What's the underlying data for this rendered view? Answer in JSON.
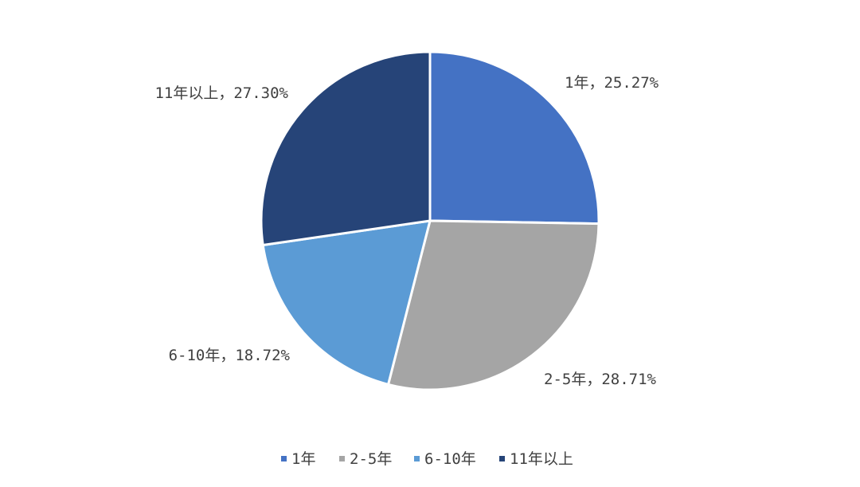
{
  "chart_data": {
    "type": "pie",
    "title": "",
    "categories": [
      "1年",
      "2-5年",
      "6-10年",
      "11年以上"
    ],
    "values": [
      25.27,
      28.71,
      18.72,
      27.3
    ],
    "colors": [
      "#4472C4",
      "#A5A5A5",
      "#5B9BD5",
      "#264478"
    ],
    "data_labels": [
      "1年，25.27%",
      "2-5年，28.71%",
      "6-10年，18.72%",
      "11年以上，27.30%"
    ],
    "start_angle_deg": 0,
    "direction": "clockwise",
    "legend": {
      "position": "bottom",
      "entries": [
        "1年",
        "2-5年",
        "6-10年",
        "11年以上"
      ]
    }
  }
}
